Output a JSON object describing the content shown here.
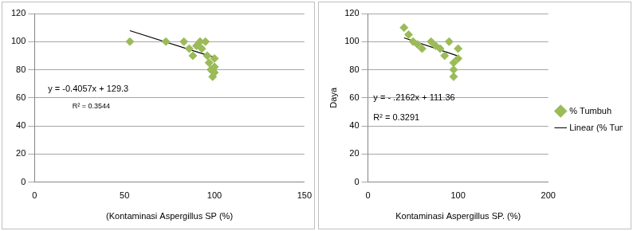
{
  "chart_data": [
    {
      "type": "scatter",
      "x_label": "(Kontaminasi Aspergillus SP (%)",
      "annotations": [
        "y = -0.4057x + 129.3",
        "R² = 0.3544"
      ],
      "xlim": [
        0,
        150
      ],
      "xticks": [
        0,
        50,
        100,
        150
      ],
      "ylim": [
        0,
        120
      ],
      "yticks": [
        0,
        20,
        40,
        60,
        80,
        100,
        120
      ],
      "grid": true,
      "series": [
        {
          "type": "scatter",
          "color": "#9bbb59",
          "marker": "diamond",
          "x": [
            53,
            73,
            83,
            86,
            88,
            90,
            92,
            93,
            95,
            96,
            97,
            98,
            99,
            100,
            100,
            100
          ],
          "values": [
            100,
            100,
            100,
            95,
            90,
            97,
            100,
            95,
            100,
            90,
            85,
            80,
            75,
            88,
            82,
            78
          ]
        },
        {
          "type": "line",
          "color": "#000000",
          "line_style": "solid",
          "x": [
            53,
            100
          ],
          "values": [
            107.8,
            88.7
          ]
        }
      ]
    },
    {
      "type": "scatter",
      "x_label": "Kontaminasi Aspergillus SP. (%)",
      "y_label": "Daya",
      "annotations": [
        "y = - .2162x + 111.36",
        "R² = 0.3291"
      ],
      "xlim": [
        0,
        200
      ],
      "xticks": [
        0,
        100,
        200
      ],
      "ylim": [
        0,
        120
      ],
      "yticks": [
        0,
        20,
        40,
        60,
        80,
        100,
        120
      ],
      "grid": true,
      "legend": "right",
      "series": [
        {
          "name": "% Tumbuh",
          "type": "scatter",
          "color": "#9bbb59",
          "marker": "diamond",
          "x": [
            40,
            45,
            50,
            55,
            60,
            70,
            75,
            80,
            85,
            90,
            95,
            95,
            95,
            100,
            100
          ],
          "values": [
            110,
            105,
            100,
            98,
            95,
            100,
            97,
            95,
            90,
            100,
            85,
            80,
            75,
            95,
            88
          ]
        },
        {
          "name": "Linear (% Tumbuh)",
          "type": "line",
          "color": "#000000",
          "line_style": "solid",
          "x": [
            40,
            100
          ],
          "values": [
            102.7,
            89.7
          ]
        }
      ]
    }
  ]
}
